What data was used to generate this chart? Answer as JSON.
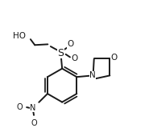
{
  "bg_color": "#ffffff",
  "line_color": "#1a1a1a",
  "line_width": 1.4,
  "font_size": 7.5,
  "figsize": [
    1.9,
    1.6
  ],
  "dpi": 100,
  "xlim": [
    -0.55,
    1.45
  ],
  "ylim": [
    -0.6,
    1.1
  ]
}
